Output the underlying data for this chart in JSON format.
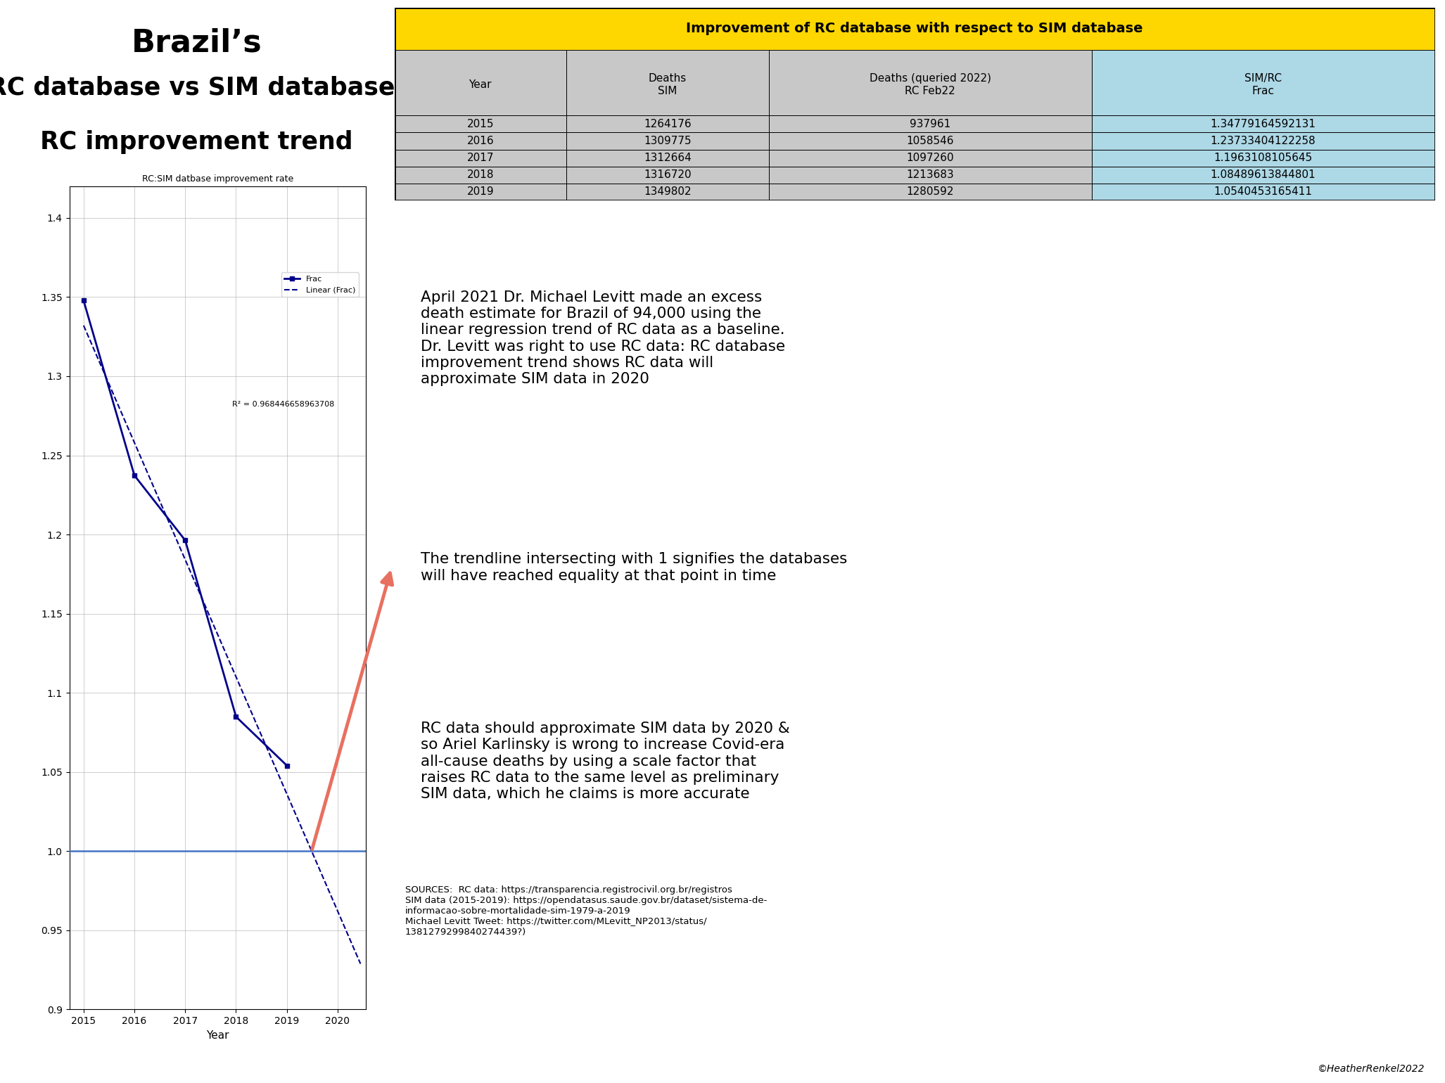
{
  "title_line1": "Brazil’s",
  "title_line2": "RC database vs SIM database:",
  "title_line3": "RC improvement trend",
  "title_bg": "#f5f5dc",
  "years": [
    2015,
    2016,
    2017,
    2018,
    2019
  ],
  "frac_values": [
    1.34779164592131,
    1.23733404122258,
    1.1963108105645,
    1.08489613844801,
    1.0540453165411
  ],
  "chart_title": "RC:SIM datbase improvement rate",
  "xlabel": "Year",
  "ylim": [
    0.9,
    1.42
  ],
  "yticks": [
    0.9,
    0.95,
    1.0,
    1.05,
    1.1,
    1.15,
    1.2,
    1.25,
    1.3,
    1.35,
    1.4
  ],
  "line_color": "#00008B",
  "trendline_color": "#00008B",
  "hline_color": "#4472C4",
  "r_squared": "R² = 0.968446658963708",
  "legend_frac": "Frac",
  "legend_linear": "Linear (Frac)",
  "table_title": "Improvement of RC database with respect to SIM database",
  "table_title_bg": "#FFD700",
  "table_header_bg": "#C8C8C8",
  "table_col3_bg": "#ADD8E6",
  "table_col_headers": [
    "Year",
    "Deaths\nSIM",
    "Deaths (queried 2022)\nRC Feb22",
    "SIM/RC\nFrac"
  ],
  "table_years": [
    "2015",
    "2016",
    "2017",
    "2018",
    "2019"
  ],
  "table_sim": [
    "1264176",
    "1309775",
    "1312664",
    "1316720",
    "1349802"
  ],
  "table_rc": [
    "937961",
    "1058546",
    "1097260",
    "1213683",
    "1280592"
  ],
  "table_frac": [
    "1.34779164592131",
    "1.23733404122258",
    "1.1963108105645",
    "1.08489613844801",
    "1.0540453165411"
  ],
  "text_box1": "April 2021 Dr. Michael Levitt made an excess\ndeath estimate for Brazil of 94,000 using the\nlinear regression trend of RC data as a baseline.\nDr. Levitt was right to use RC data: RC database\nimprovement trend shows RC data will\napproximate SIM data in 2020",
  "text_box1_bg": "#f5f5dc",
  "text_box2": "The trendline intersecting with 1 signifies the databases\nwill have reached equality at that point in time",
  "text_box2_bg": "#f5f5dc",
  "text_box3": "RC data should approximate SIM data by 2020 &\nso Ariel Karlinsky is wrong to increase Covid-era\nall-cause deaths by using a scale factor that\nraises RC data to the same level as preliminary\nSIM data, which he claims is more accurate",
  "text_box3_bg": "#f5f5dc",
  "copyright": "©HeatherRenkel2022",
  "overall_bg": "#FFFFFF",
  "arrow_color": "#E87060"
}
